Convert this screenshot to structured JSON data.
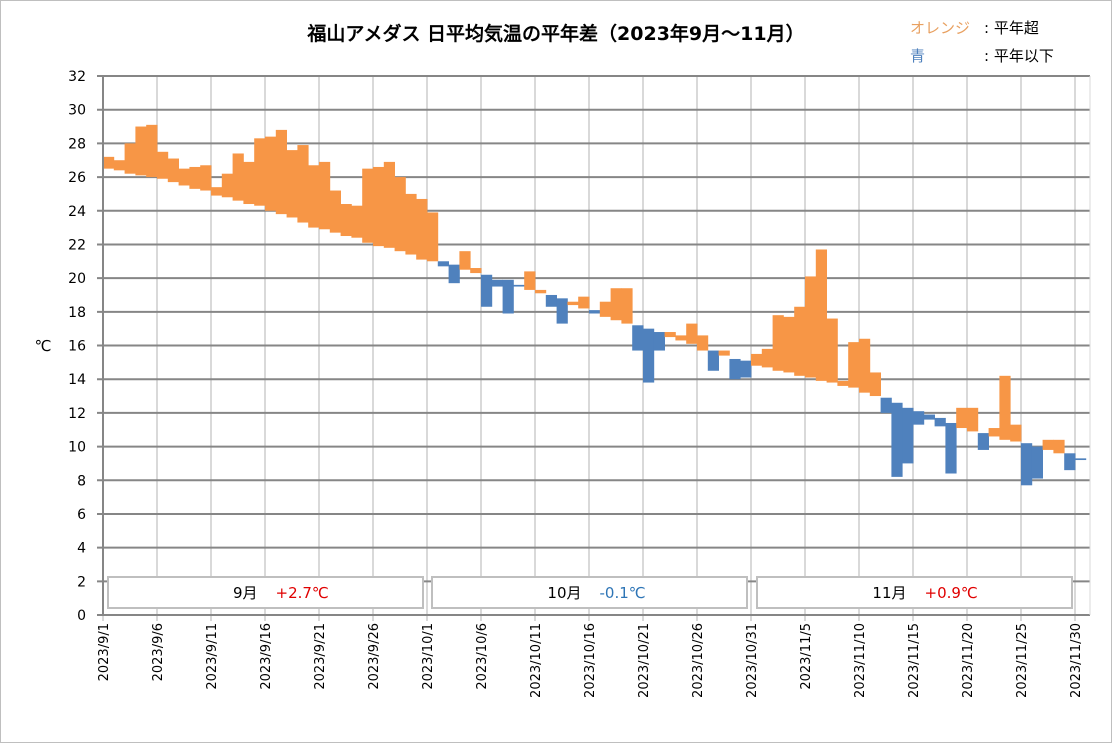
{
  "chart_data": {
    "type": "bar",
    "subtype": "floating-bar (normal to actual)",
    "title": "福山アメダス 日平均気温の平年差（2023年9月～11月）",
    "ylabel": "℃",
    "xlabel": "",
    "ylim": [
      0,
      32
    ],
    "yticks": [
      0,
      2,
      4,
      6,
      8,
      10,
      12,
      14,
      16,
      18,
      20,
      22,
      24,
      26,
      28,
      30,
      32
    ],
    "grid": true,
    "start_date": "2023/9/1",
    "xtick_labels": [
      "2023/9/1",
      "2023/9/6",
      "2023/9/11",
      "2023/9/16",
      "2023/9/21",
      "2023/9/26",
      "2023/10/1",
      "2023/10/6",
      "2023/10/11",
      "2023/10/16",
      "2023/10/21",
      "2023/10/26",
      "2023/10/31",
      "2023/11/5",
      "2023/11/10",
      "2023/11/15",
      "2023/11/20",
      "2023/11/25",
      "2023/11/30"
    ],
    "actual": [
      27.2,
      27.0,
      28.0,
      29.0,
      29.1,
      27.5,
      27.1,
      26.5,
      26.6,
      26.7,
      25.4,
      26.2,
      27.4,
      26.9,
      28.3,
      28.4,
      28.8,
      27.6,
      27.9,
      26.7,
      26.9,
      25.2,
      24.4,
      24.3,
      26.5,
      26.6,
      26.9,
      26.0,
      25.0,
      24.7,
      23.9,
      20.7,
      19.7,
      21.6,
      20.6,
      18.3,
      19.5,
      17.9,
      19.5,
      20.4,
      19.3,
      18.3,
      17.3,
      18.6,
      18.9,
      17.9,
      18.6,
      19.4,
      19.4,
      15.7,
      13.8,
      15.7,
      16.8,
      16.6,
      17.3,
      16.6,
      14.5,
      15.7,
      14.0,
      14.1,
      15.5,
      15.8,
      17.8,
      17.7,
      18.3,
      20.1,
      21.7,
      17.6,
      13.9,
      16.2,
      16.4,
      14.4,
      12.0,
      8.2,
      9.0,
      11.3,
      11.6,
      11.2,
      8.4,
      12.3,
      12.3,
      9.8,
      11.1,
      14.2,
      11.3,
      7.7,
      8.1,
      10.4,
      10.4,
      8.6,
      9.2
    ],
    "normal": [
      26.5,
      26.4,
      26.2,
      26.1,
      26.0,
      25.9,
      25.7,
      25.5,
      25.3,
      25.2,
      24.9,
      24.8,
      24.6,
      24.4,
      24.3,
      24.0,
      23.8,
      23.6,
      23.3,
      23.0,
      22.9,
      22.7,
      22.5,
      22.4,
      22.1,
      21.9,
      21.8,
      21.6,
      21.4,
      21.1,
      21.0,
      21.0,
      20.8,
      20.5,
      20.3,
      20.2,
      19.9,
      19.9,
      19.6,
      19.3,
      19.1,
      19.0,
      18.8,
      18.4,
      18.2,
      18.1,
      17.7,
      17.5,
      17.3,
      17.2,
      17.0,
      16.8,
      16.5,
      16.3,
      16.1,
      15.7,
      15.7,
      15.4,
      15.2,
      15.1,
      14.8,
      14.7,
      14.5,
      14.4,
      14.2,
      14.1,
      13.9,
      13.8,
      13.6,
      13.5,
      13.2,
      13.0,
      12.9,
      12.6,
      12.3,
      12.1,
      11.9,
      11.7,
      11.4,
      11.1,
      10.9,
      10.8,
      10.6,
      10.4,
      10.3,
      10.2,
      10.0,
      9.8,
      9.6,
      9.6,
      9.3
    ],
    "colors": {
      "above": "#F79646",
      "below": "#4F81BD",
      "legend_orange": "#E8A060",
      "positive_text": "#E00000",
      "negative_text": "#2E75B6"
    },
    "legend": {
      "position": "top-right",
      "above_key": "オレンジ",
      "above_text": ": 平年超",
      "below_key": "青",
      "below_text": ": 平年以下"
    },
    "month_summaries": [
      {
        "month": "9月",
        "anomaly": "+2.7℃",
        "sign": "positive"
      },
      {
        "month": "10月",
        "anomaly": "-0.1℃",
        "sign": "negative"
      },
      {
        "month": "11月",
        "anomaly": "+0.9℃",
        "sign": "positive"
      }
    ]
  }
}
